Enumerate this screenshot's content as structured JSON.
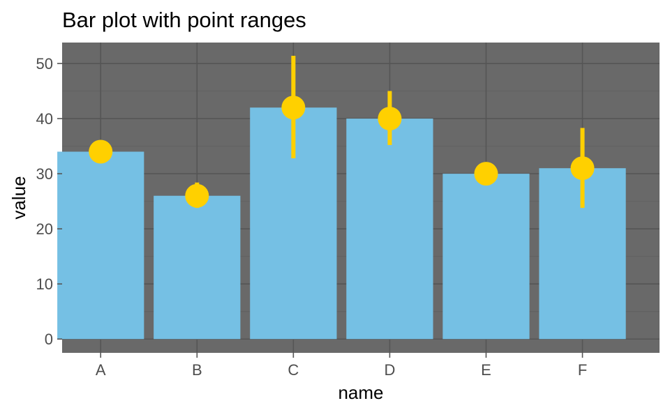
{
  "chart_data": {
    "type": "bar",
    "title": "Bar plot with point ranges",
    "xlabel": "name",
    "ylabel": "value",
    "categories": [
      "A",
      "B",
      "C",
      "D",
      "E",
      "F"
    ],
    "values": [
      34,
      26,
      42,
      40,
      30,
      31
    ],
    "point_ranges": [
      {
        "low": 34,
        "high": 34
      },
      {
        "low": 23.8,
        "high": 28.4
      },
      {
        "low": 32.8,
        "high": 51.4
      },
      {
        "low": 35.2,
        "high": 45
      },
      {
        "low": 30,
        "high": 30
      },
      {
        "low": 23.8,
        "high": 38.3
      }
    ],
    "ylim": [
      -2.5,
      53.8
    ],
    "yticks": [
      0,
      10,
      20,
      30,
      40,
      50
    ],
    "grid": true,
    "colors": {
      "panel_background": "#696969",
      "grid_major": "#555555",
      "grid_minor": "#616161",
      "bar_fill": "#75c0e4",
      "point_range": "#ffd000",
      "axis_text": "#4d4d4d",
      "text": "#000000"
    }
  }
}
